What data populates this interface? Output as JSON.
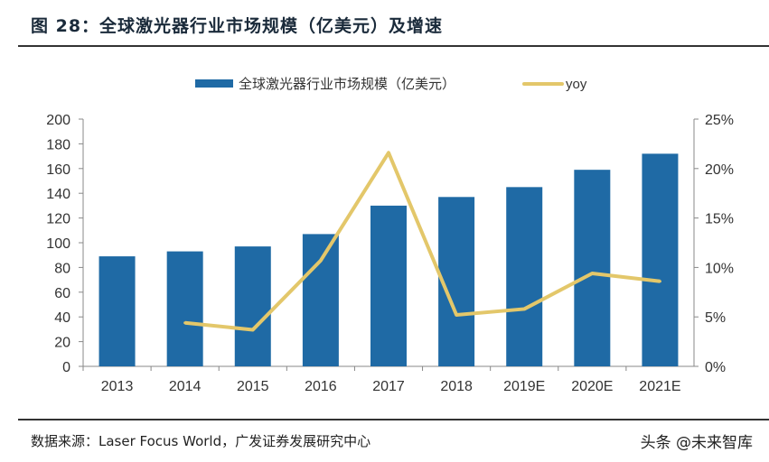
{
  "title": "图 28：全球激光器行业市场规模（亿美元）及增速",
  "source": "数据来源：Laser Focus World，广发证券发展研究中心",
  "watermark": "头条 @未来智库",
  "chart_data": {
    "type": "bar+line",
    "categories": [
      "2013",
      "2014",
      "2015",
      "2016",
      "2017",
      "2018",
      "2019E",
      "2020E",
      "2021E"
    ],
    "series": [
      {
        "name": "全球激光器行业市场规模（亿美元）",
        "type": "bar",
        "axis": "left",
        "color": "#1F6AA5",
        "values": [
          89,
          93,
          97,
          107,
          130,
          137,
          145,
          159,
          172
        ]
      },
      {
        "name": "yoy",
        "type": "line",
        "axis": "right",
        "color": "#E3C76A",
        "values": [
          null,
          4.4,
          3.7,
          10.7,
          21.6,
          5.2,
          5.8,
          9.4,
          8.6
        ]
      }
    ],
    "left_axis": {
      "ylim": [
        0,
        200
      ],
      "ticks": [
        "0",
        "20",
        "40",
        "60",
        "80",
        "100",
        "120",
        "140",
        "160",
        "180",
        "200"
      ]
    },
    "right_axis": {
      "ylim": [
        0,
        25
      ],
      "ticks": [
        "0%",
        "5%",
        "10%",
        "15%",
        "20%",
        "25%"
      ]
    },
    "legend": "top",
    "grid": false
  }
}
